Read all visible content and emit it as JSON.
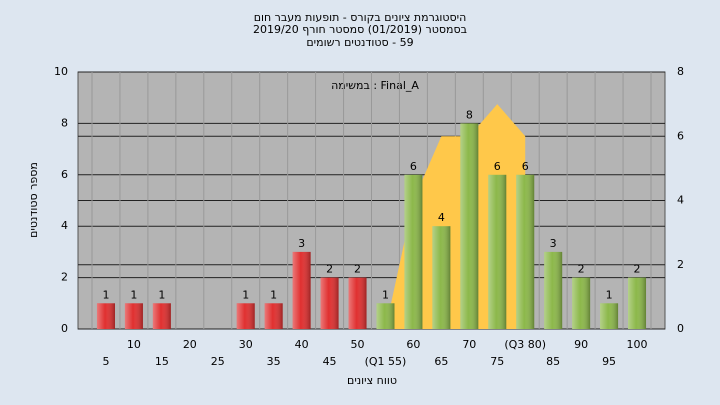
{
  "chart_data": {
    "type": "bar",
    "title_lines": [
      "היסטוגרמת ציונים בקורס - תופעות מעבר חום",
      "בסמסטר (01/2019) סמסטר חורף 2019/20",
      "59 - סטודנטים רשומים"
    ],
    "annotation": "Final_A : במשימה",
    "ylabel": "מספר סטודנטים",
    "xlabel": "טווח ציונים",
    "categories": [
      "5",
      "10",
      "15",
      "20",
      "25",
      "30",
      "35",
      "40",
      "45",
      "50",
      "(Q1 55)",
      "60",
      "65",
      "70",
      "75",
      "(Q3 80)",
      "85",
      "90",
      "95",
      "100"
    ],
    "values": [
      1,
      1,
      1,
      0,
      0,
      1,
      1,
      3,
      2,
      2,
      1,
      6,
      4,
      8,
      6,
      6,
      3,
      2,
      1,
      2
    ],
    "colors": [
      "#e03030",
      "#e03030",
      "#e03030",
      "#e03030",
      "#e03030",
      "#e03030",
      "#e03030",
      "#e03030",
      "#e03030",
      "#e03030",
      "#8cb84a",
      "#8cb84a",
      "#8cb84a",
      "#8cb84a",
      "#8cb84a",
      "#8cb84a",
      "#8cb84a",
      "#8cb84a",
      "#8cb84a",
      "#8cb84a"
    ],
    "area": {
      "axis": "y2",
      "color": "#ffc84a",
      "values": [
        null,
        null,
        null,
        null,
        null,
        null,
        null,
        null,
        null,
        null,
        0,
        4,
        6,
        6,
        7,
        6,
        null,
        null,
        null,
        null
      ]
    },
    "ylim": [
      0,
      10
    ],
    "yticks": [
      0,
      2,
      4,
      6,
      8,
      10
    ],
    "y2lim": [
      0,
      8
    ],
    "y2ticks": [
      0,
      2,
      4,
      6,
      8
    ],
    "grid": true
  }
}
